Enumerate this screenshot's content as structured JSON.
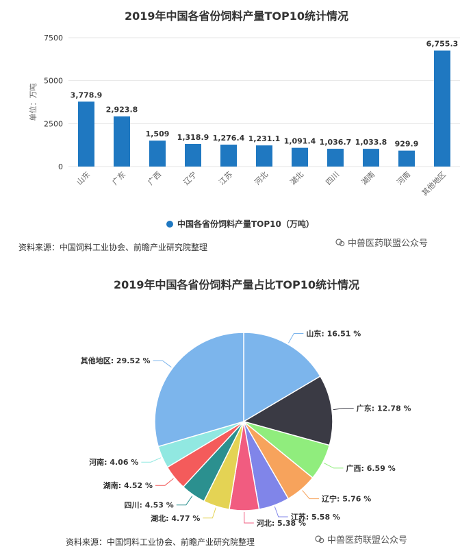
{
  "watermark_text": "中兽医药联盟公众号",
  "chart_data": [
    {
      "type": "bar",
      "title": "2019年中国各省份饲料产量TOP10统计情况",
      "ylabel": "单位：万吨",
      "ylim": [
        0,
        7500
      ],
      "yticks": [
        "0",
        "2500",
        "5000",
        "7500"
      ],
      "categories": [
        "山东",
        "广东",
        "广西",
        "辽宁",
        "江苏",
        "河北",
        "湖北",
        "四川",
        "湖南",
        "河南",
        "其他地区"
      ],
      "values": [
        3778.9,
        2923.8,
        1509,
        1318.9,
        1276.4,
        1231.1,
        1091.4,
        1036.7,
        1033.8,
        929.9,
        6755.3
      ],
      "value_labels": [
        "3,778.9",
        "2,923.8",
        "1,509",
        "1,318.9",
        "1,276.4",
        "1,231.1",
        "1,091.4",
        "1,036.7",
        "1,033.8",
        "929.9",
        "6,755.3"
      ],
      "legend": "中国各省份饲料产量TOP10（万吨）",
      "color": "#1f78c1",
      "source": "资料来源：中国饲料工业协会、前瞻产业研究院整理"
    },
    {
      "type": "pie",
      "title": "2019年中国各省份饲料产量占比TOP10统计情况",
      "slices": [
        {
          "name": "山东",
          "value": 16.51,
          "label": "山东: 16.51 %",
          "color": "#7cb5ec"
        },
        {
          "name": "广东",
          "value": 12.78,
          "label": "广东: 12.78 %",
          "color": "#3a3a44"
        },
        {
          "name": "广西",
          "value": 6.59,
          "label": "广西: 6.59 %",
          "color": "#90ed7d"
        },
        {
          "name": "辽宁",
          "value": 5.76,
          "label": "辽宁: 5.76 %",
          "color": "#f7a35c"
        },
        {
          "name": "江苏",
          "value": 5.58,
          "label": "江苏: 5.58 %",
          "color": "#8085e9"
        },
        {
          "name": "河北",
          "value": 5.38,
          "label": "河北: 5.38 %",
          "color": "#f15c80"
        },
        {
          "name": "湖北",
          "value": 4.77,
          "label": "湖北: 4.77 %",
          "color": "#e4d354"
        },
        {
          "name": "四川",
          "value": 4.53,
          "label": "四川: 4.53 %",
          "color": "#2b908f"
        },
        {
          "name": "湖南",
          "value": 4.52,
          "label": "湖南: 4.52 %",
          "color": "#f45b5b"
        },
        {
          "name": "河南",
          "value": 4.06,
          "label": "河南: 4.06 %",
          "color": "#91e8e1"
        },
        {
          "name": "其他地区",
          "value": 29.52,
          "label": "其他地区: 29.52 %",
          "color": "#7cb5ec"
        }
      ],
      "source": "资料来源：中国饲料工业协会、前瞻产业研究院整理"
    }
  ]
}
